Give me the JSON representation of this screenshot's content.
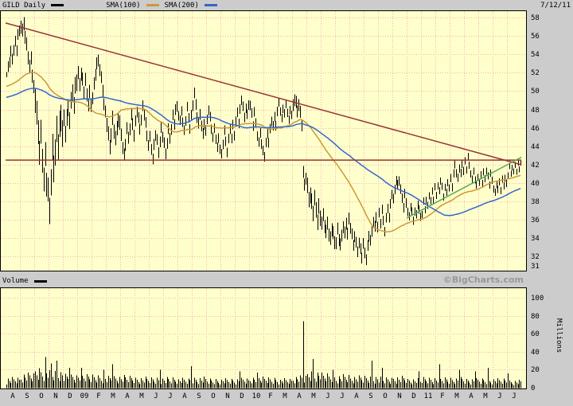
{
  "chart_data": {
    "type": "candlestick+volume",
    "symbol": "GILD",
    "period": "Daily",
    "as_of_date": "7/12/11",
    "branding": "©BigCharts.com",
    "volume_label": "Volume",
    "legend": [
      {
        "label": "GILD Daily",
        "color": "#000000"
      },
      {
        "label": "SMA(100)",
        "color": "#cc9933"
      },
      {
        "label": "SMA(200)",
        "color": "#3366cc"
      }
    ],
    "colors": {
      "background": "#ffffcc",
      "frame": "#cccccc",
      "grid": "#f0b4b4",
      "price": "#000000",
      "sma100": "#cc9933",
      "sma200": "#3366cc",
      "trend_red": "#993333",
      "trend_green": "#55aa55"
    },
    "price_axis": {
      "min": 31,
      "max": 58,
      "ticks": [
        58,
        56,
        54,
        52,
        50,
        48,
        46,
        44,
        42,
        40,
        38,
        36,
        34,
        32,
        31
      ]
    },
    "volume_axis": {
      "min": 0,
      "max": 100,
      "ticks": [
        100,
        80,
        60,
        40,
        20,
        0
      ],
      "unit": "Millions"
    },
    "x_labels": [
      "A",
      "S",
      "O",
      "N",
      "D",
      "09",
      "F",
      "M",
      "A",
      "M",
      "J",
      "J",
      "A",
      "S",
      "O",
      "N",
      "D",
      "10",
      "F",
      "M",
      "A",
      "M",
      "J",
      "J",
      "A",
      "S",
      "O",
      "N",
      "D",
      "11",
      "F",
      "M",
      "A",
      "M",
      "J",
      "J"
    ],
    "points_per_month": 10,
    "close": [
      51.8,
      52.6,
      53.3,
      54.1,
      53.5,
      54.7,
      55.3,
      54.5,
      55.9,
      56.5,
      57.2,
      56.4,
      57.4,
      56.2,
      55.0,
      53.8,
      52.4,
      53.6,
      51.9,
      50.3,
      49.1,
      47.0,
      45.4,
      43.7,
      45.1,
      42.5,
      41.0,
      42.9,
      40.1,
      38.7,
      36.9,
      40.6,
      43.5,
      41.7,
      44.1,
      45.7,
      44.3,
      45.9,
      47.1,
      46.0,
      46.9,
      45.5,
      46.7,
      48.1,
      47.1,
      48.7,
      49.9,
      48.9,
      50.5,
      51.1,
      51.7,
      50.7,
      52.1,
      51.1,
      49.9,
      50.9,
      49.5,
      48.7,
      49.7,
      48.5,
      49.5,
      50.7,
      51.9,
      52.7,
      53.3,
      52.5,
      51.3,
      50.1,
      48.9,
      47.7,
      46.5,
      45.1,
      43.9,
      45.5,
      46.9,
      45.7,
      44.5,
      45.9,
      47.1,
      46.3,
      45.3,
      44.1,
      43.0,
      44.3,
      45.7,
      44.9,
      46.1,
      47.3,
      46.5,
      45.5,
      46.7,
      47.9,
      46.9,
      45.9,
      47.1,
      48.3,
      47.5,
      46.3,
      45.1,
      44.3,
      44.9,
      43.7,
      42.9,
      44.1,
      45.3,
      44.5,
      43.3,
      44.7,
      45.9,
      45.1,
      44.1,
      43.1,
      44.5,
      45.7,
      44.9,
      46.1,
      47.3,
      46.5,
      47.7,
      48.3,
      47.5,
      46.7,
      47.9,
      46.9,
      45.7,
      46.9,
      48.1,
      47.1,
      46.1,
      47.3,
      48.5,
      49.5,
      48.5,
      47.3,
      46.3,
      47.5,
      46.5,
      45.3,
      46.5,
      45.5,
      46.9,
      48.1,
      47.1,
      45.9,
      44.7,
      45.9,
      44.9,
      43.7,
      44.9,
      43.9,
      43.1,
      44.3,
      45.5,
      44.5,
      43.5,
      44.7,
      45.9,
      45.1,
      46.3,
      45.3,
      46.5,
      47.7,
      46.7,
      47.9,
      49.1,
      48.1,
      47.1,
      48.3,
      47.3,
      48.5,
      48.7,
      47.5,
      46.3,
      47.5,
      46.5,
      45.3,
      44.3,
      45.5,
      44.5,
      43.5,
      43.0,
      44.2,
      45.4,
      44.6,
      45.8,
      46.8,
      46.0,
      47.2,
      46.4,
      47.6,
      48.8,
      48.0,
      47.0,
      48.2,
      47.4,
      48.6,
      47.8,
      46.8,
      48.0,
      47.2,
      48.4,
      49.2,
      48.6,
      47.8,
      48.8,
      47.6,
      46.4,
      40.9,
      39.8,
      40.7,
      39.5,
      38.3,
      39.1,
      37.9,
      36.9,
      38.1,
      37.1,
      36.1,
      37.3,
      36.3,
      35.3,
      36.5,
      35.5,
      34.5,
      35.7,
      34.7,
      33.9,
      35.1,
      34.3,
      33.5,
      33.7,
      34.9,
      33.9,
      33.0,
      34.2,
      35.4,
      34.4,
      35.6,
      34.8,
      36.0,
      35.2,
      34.2,
      33.2,
      34.4,
      33.4,
      32.6,
      33.8,
      32.8,
      32.0,
      33.2,
      32.4,
      31.9,
      33.1,
      34.3,
      33.5,
      34.7,
      35.9,
      35.1,
      36.3,
      35.5,
      36.7,
      35.7,
      36.9,
      35.9,
      34.9,
      36.1,
      37.3,
      36.5,
      37.7,
      38.9,
      38.1,
      39.3,
      40.5,
      39.7,
      40.3,
      39.1,
      38.3,
      37.5,
      38.7,
      37.9,
      37.1,
      36.3,
      37.5,
      36.7,
      35.9,
      37.1,
      36.5,
      37.7,
      36.9,
      36.3,
      36.7,
      37.9,
      37.1,
      38.3,
      37.5,
      38.7,
      37.9,
      39.1,
      38.3,
      39.5,
      38.7,
      39.9,
      39.1,
      40.3,
      39.5,
      38.5,
      39.7,
      38.9,
      40.1,
      39.3,
      40.5,
      39.7,
      40.9,
      42.1,
      41.3,
      40.5,
      41.7,
      40.9,
      42.1,
      41.5,
      42.3,
      41.5,
      42.7,
      41.9,
      41.1,
      40.3,
      41.3,
      40.5,
      39.7,
      40.7,
      39.9,
      40.9,
      40.1,
      41.1,
      40.5,
      41.5,
      40.7,
      39.9,
      40.9,
      40.3,
      39.5,
      38.9,
      39.9,
      39.1,
      40.1,
      39.3,
      40.3,
      39.7,
      40.7,
      39.9,
      40.9,
      41.7,
      41.0,
      41.8,
      41.2,
      42.0,
      41.4,
      42.2,
      41.6,
      42.1
    ],
    "bar_amplitude_by_month": [
      0.9,
      1.1,
      2.0,
      2.2,
      1.4,
      1.1,
      1.0,
      1.2,
      1.0,
      0.9,
      0.9,
      0.9,
      0.8,
      0.9,
      0.8,
      0.8,
      0.8,
      0.8,
      0.8,
      0.7,
      1.0,
      1.3,
      1.1,
      1.0,
      0.9,
      0.9,
      0.8,
      0.8,
      0.7,
      0.6,
      0.6,
      0.7,
      0.6,
      0.6,
      0.6,
      0.5
    ],
    "volume_base_by_month": [
      8,
      11,
      16,
      13,
      10,
      10,
      10,
      9,
      9,
      8,
      8,
      8,
      7,
      8,
      7,
      7,
      7,
      8,
      8,
      7,
      9,
      13,
      11,
      10,
      9,
      9,
      8,
      9,
      7,
      8,
      8,
      8,
      7,
      7,
      7,
      6
    ],
    "volume_spikes": {
      "27": 34,
      "31": 27,
      "35": 30,
      "44": 22,
      "52": 22,
      "68": 20,
      "74": 26,
      "107": 20,
      "129": 24,
      "163": 18,
      "175": 17,
      "207": 74,
      "214": 32,
      "228": 20,
      "255": 30,
      "262": 22,
      "288": 18,
      "302": 26,
      "316": 20,
      "327": 18,
      "336": 22,
      "350": 16
    },
    "sma": [
      {
        "label": "SMA(100)",
        "window_points": 50,
        "seed": 50.5,
        "color_key": "sma100"
      },
      {
        "label": "SMA(200)",
        "window_points": 100,
        "seed": 49.3,
        "color_key": "sma200"
      }
    ],
    "trendlines": [
      {
        "name": "descending-resistance-line",
        "color_key": "trend_red",
        "from": {
          "month": 0,
          "price": 57.4
        },
        "to": {
          "month": 36,
          "price": 42.0
        }
      },
      {
        "name": "horizontal-resistance-line",
        "color_key": "trend_red",
        "from": {
          "month": 0,
          "price": 42.5
        },
        "to": {
          "month": 36,
          "price": 42.5
        }
      },
      {
        "name": "ascending-support-line",
        "color_key": "trend_green",
        "from": {
          "month": 28.0,
          "price": 36.2
        },
        "to": {
          "month": 36,
          "price": 42.8
        }
      }
    ]
  }
}
